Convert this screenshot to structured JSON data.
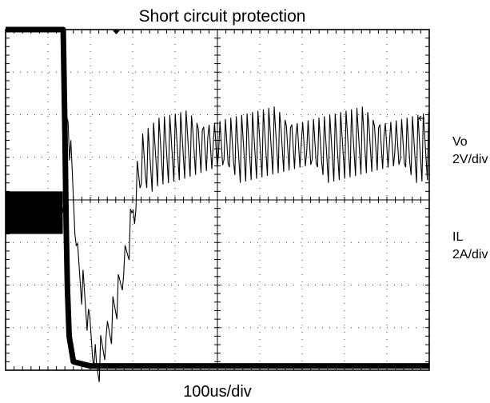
{
  "chart_data": {
    "type": "line",
    "title": "Short circuit protection",
    "xlabel": "100us/div",
    "x_divisions": 10,
    "y_divisions": 8,
    "xlim": [
      0,
      1000
    ],
    "series": [
      {
        "name": "Vo",
        "scale": "2V/div",
        "x": [
          0,
          136,
          140,
          143,
          146,
          150,
          160,
          200,
          400,
          600,
          1000
        ],
        "y": [
          8.0,
          8.0,
          5.6,
          3.4,
          1.9,
          0.8,
          0.2,
          0.1,
          0.1,
          0.1,
          0.1
        ]
      },
      {
        "name": "IL",
        "scale": "2A/div",
        "x": [
          0,
          20,
          60,
          100,
          135,
          140,
          145,
          170,
          200,
          215,
          240,
          270,
          290,
          320,
          360,
          420,
          520,
          620,
          720,
          820,
          920,
          1000
        ],
        "y": [
          3.7,
          3.7,
          3.7,
          3.7,
          3.7,
          4.1,
          6.2,
          2.6,
          0.9,
          0.0,
          0.8,
          1.9,
          3.0,
          4.9,
          5.2,
          5.2,
          5.3,
          5.3,
          5.3,
          5.3,
          5.3,
          5.3
        ]
      }
    ]
  }
}
